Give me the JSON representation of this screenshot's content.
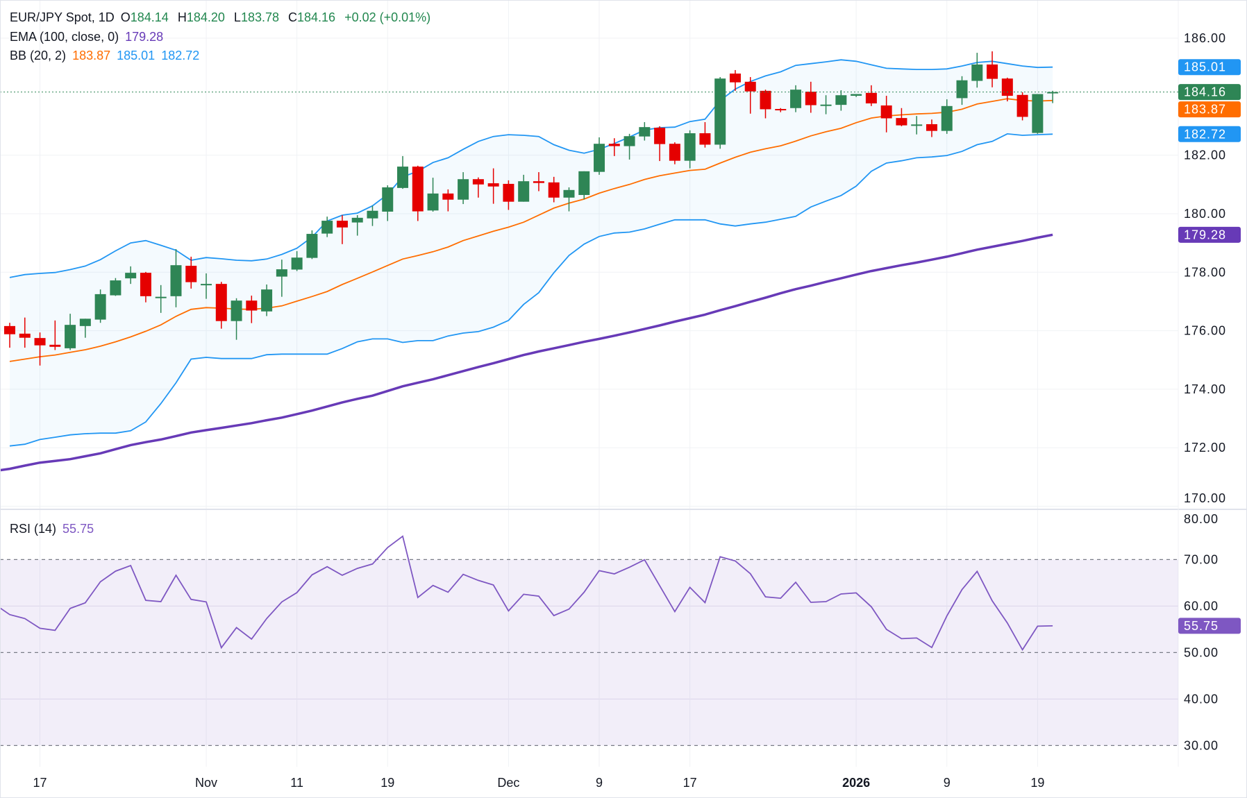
{
  "legend": {
    "symbol": "EUR/JPY Spot, 1D",
    "open_label": "O",
    "open": "184.14",
    "high_label": "H",
    "high": "184.20",
    "low_label": "L",
    "low": "183.78",
    "close_label": "C",
    "close": "184.16",
    "change": "+0.02 (+0.01%)",
    "ema_label": "EMA (100, close, 0)",
    "ema_value": "179.28",
    "bb_label": "BB (20, 2)",
    "bb_basis": "183.87",
    "bb_upper": "185.01",
    "bb_lower": "182.72",
    "rsi_label": "RSI (14)",
    "rsi_value": "55.75"
  },
  "colors": {
    "up": "#2e8555",
    "down": "#e50000",
    "bb_band": "#2196f3",
    "bb_basis": "#ff6d00",
    "ema": "#673ab7",
    "rsi": "#7e57c2",
    "last_price": "#2e8555"
  },
  "chart_data": [
    {
      "type": "candlestick",
      "x": [
        "2025-10-15",
        "2025-10-16",
        "2025-10-17",
        "2025-10-20",
        "2025-10-21",
        "2025-10-22",
        "2025-10-23",
        "2025-10-24",
        "2025-10-27",
        "2025-10-28",
        "2025-10-29",
        "2025-10-30",
        "2025-10-31",
        "2025-11-03",
        "2025-11-04",
        "2025-11-05",
        "2025-11-06",
        "2025-11-07",
        "2025-11-10",
        "2025-11-11",
        "2025-11-12",
        "2025-11-13",
        "2025-11-14",
        "2025-11-17",
        "2025-11-18",
        "2025-11-19",
        "2025-11-20",
        "2025-11-21",
        "2025-11-24",
        "2025-11-25",
        "2025-11-26",
        "2025-11-27",
        "2025-11-28",
        "2025-12-01",
        "2025-12-02",
        "2025-12-03",
        "2025-12-04",
        "2025-12-05",
        "2025-12-08",
        "2025-12-09",
        "2025-12-10",
        "2025-12-11",
        "2025-12-12",
        "2025-12-15",
        "2025-12-16",
        "2025-12-17",
        "2025-12-18",
        "2025-12-19",
        "2025-12-22",
        "2025-12-23",
        "2025-12-24",
        "2025-12-25",
        "2025-12-26",
        "2025-12-29",
        "2025-12-30",
        "2025-12-31",
        "2026-01-01",
        "2026-01-02",
        "2026-01-05",
        "2026-01-06",
        "2026-01-07",
        "2026-01-08",
        "2026-01-09",
        "2026-01-12",
        "2026-01-13",
        "2026-01-14",
        "2026-01-15",
        "2026-01-16",
        "2026-01-19",
        "2026-01-20"
      ],
      "ohlc": [
        [
          176.16,
          176.27,
          175.42,
          175.88
        ],
        [
          175.9,
          176.45,
          175.42,
          175.76
        ],
        [
          175.75,
          175.94,
          174.81,
          175.5
        ],
        [
          175.52,
          176.35,
          175.34,
          175.45
        ],
        [
          175.4,
          176.58,
          175.34,
          176.2
        ],
        [
          176.16,
          176.41,
          175.76,
          176.41
        ],
        [
          176.38,
          177.41,
          176.27,
          177.25
        ],
        [
          177.21,
          177.8,
          177.19,
          177.72
        ],
        [
          177.79,
          178.2,
          177.6,
          177.98
        ],
        [
          177.98,
          178.01,
          176.97,
          177.18
        ],
        [
          177.14,
          177.56,
          176.61,
          177.16
        ],
        [
          177.18,
          178.79,
          176.8,
          178.24
        ],
        [
          178.22,
          178.53,
          177.44,
          177.66
        ],
        [
          177.58,
          177.96,
          177.09,
          177.6
        ],
        [
          177.6,
          177.67,
          176.07,
          176.33
        ],
        [
          176.33,
          177.11,
          175.69,
          177.03
        ],
        [
          177.03,
          177.2,
          176.26,
          176.69
        ],
        [
          176.66,
          177.58,
          176.5,
          177.41
        ],
        [
          177.85,
          178.43,
          177.16,
          178.1
        ],
        [
          178.09,
          178.72,
          178.04,
          178.5
        ],
        [
          178.49,
          179.43,
          178.45,
          179.31
        ],
        [
          179.32,
          179.9,
          179.2,
          179.76
        ],
        [
          179.76,
          179.95,
          178.96,
          179.53
        ],
        [
          179.7,
          179.95,
          179.25,
          179.86
        ],
        [
          179.84,
          180.27,
          179.58,
          180.1
        ],
        [
          180.07,
          180.97,
          179.75,
          180.9
        ],
        [
          180.88,
          181.97,
          180.85,
          181.61
        ],
        [
          181.61,
          181.64,
          179.75,
          180.08
        ],
        [
          180.11,
          181.23,
          180.07,
          180.69
        ],
        [
          180.69,
          180.83,
          180.08,
          180.48
        ],
        [
          180.48,
          181.42,
          180.33,
          181.18
        ],
        [
          181.18,
          181.24,
          180.55,
          181.0
        ],
        [
          181.04,
          181.55,
          180.34,
          180.93
        ],
        [
          181.02,
          181.14,
          180.13,
          180.41
        ],
        [
          180.41,
          181.33,
          180.41,
          181.11
        ],
        [
          181.11,
          181.42,
          180.77,
          181.05
        ],
        [
          181.07,
          181.26,
          180.39,
          180.55
        ],
        [
          180.55,
          180.9,
          180.08,
          180.81
        ],
        [
          180.64,
          181.45,
          180.49,
          181.45
        ],
        [
          181.43,
          182.61,
          181.33,
          182.39
        ],
        [
          182.39,
          182.58,
          181.97,
          182.31
        ],
        [
          182.31,
          182.73,
          181.85,
          182.65
        ],
        [
          182.64,
          183.13,
          182.5,
          182.96
        ],
        [
          182.94,
          182.99,
          181.8,
          182.38
        ],
        [
          182.39,
          182.44,
          181.69,
          181.81
        ],
        [
          181.81,
          182.85,
          181.55,
          182.75
        ],
        [
          182.75,
          183.13,
          182.26,
          182.36
        ],
        [
          182.36,
          184.67,
          182.22,
          184.62
        ],
        [
          184.79,
          184.91,
          184.2,
          184.49
        ],
        [
          184.51,
          184.67,
          183.42,
          184.18
        ],
        [
          184.2,
          184.24,
          183.26,
          183.57
        ],
        [
          183.58,
          183.61,
          183.47,
          183.55
        ],
        [
          183.61,
          184.39,
          183.47,
          184.24
        ],
        [
          184.17,
          184.51,
          183.45,
          183.71
        ],
        [
          183.72,
          184.05,
          183.4,
          183.73
        ],
        [
          183.72,
          184.22,
          183.52,
          184.05
        ],
        [
          184.03,
          184.09,
          183.99,
          184.09
        ],
        [
          184.13,
          184.39,
          183.68,
          183.77
        ],
        [
          183.7,
          184.03,
          182.78,
          183.26
        ],
        [
          183.27,
          183.61,
          182.99,
          183.02
        ],
        [
          183.04,
          183.34,
          182.71,
          183.05
        ],
        [
          183.06,
          183.22,
          182.62,
          182.83
        ],
        [
          182.83,
          183.91,
          182.73,
          183.68
        ],
        [
          183.95,
          184.7,
          183.72,
          184.56
        ],
        [
          184.54,
          185.5,
          184.31,
          185.1
        ],
        [
          185.1,
          185.55,
          184.32,
          184.61
        ],
        [
          184.62,
          184.65,
          183.84,
          184.03
        ],
        [
          184.06,
          184.15,
          183.19,
          183.31
        ],
        [
          182.76,
          184.09,
          182.73,
          184.09
        ],
        [
          184.14,
          184.2,
          183.78,
          184.16
        ]
      ],
      "series": [
        {
          "name": "BB upper",
          "values": [
            177.82,
            177.92,
            177.96,
            177.99,
            178.09,
            178.21,
            178.43,
            178.73,
            179.0,
            179.08,
            178.92,
            178.75,
            178.41,
            178.5,
            178.46,
            178.41,
            178.39,
            178.45,
            178.61,
            178.82,
            179.2,
            179.75,
            179.95,
            180.02,
            180.27,
            180.66,
            181.26,
            181.45,
            181.75,
            181.91,
            182.2,
            182.47,
            182.64,
            182.7,
            182.68,
            182.64,
            182.36,
            182.17,
            182.07,
            182.2,
            182.4,
            182.62,
            182.86,
            182.94,
            182.96,
            183.15,
            183.23,
            183.87,
            184.26,
            184.52,
            184.71,
            184.85,
            185.07,
            185.13,
            185.19,
            185.26,
            185.21,
            185.09,
            184.97,
            184.95,
            184.93,
            184.93,
            184.95,
            185.05,
            185.17,
            185.21,
            185.13,
            185.05,
            185.0,
            185.01
          ]
        },
        {
          "name": "BB basis",
          "values": [
            174.95,
            175.03,
            175.11,
            175.17,
            175.26,
            175.35,
            175.47,
            175.62,
            175.79,
            175.98,
            176.2,
            176.49,
            176.73,
            176.79,
            176.77,
            176.74,
            176.73,
            176.77,
            176.85,
            177.01,
            177.17,
            177.34,
            177.58,
            177.79,
            178.01,
            178.23,
            178.45,
            178.57,
            178.7,
            178.86,
            179.08,
            179.24,
            179.4,
            179.54,
            179.71,
            179.95,
            180.19,
            180.36,
            180.5,
            180.7,
            180.86,
            181.0,
            181.17,
            181.3,
            181.39,
            181.48,
            181.52,
            181.73,
            181.93,
            182.1,
            182.22,
            182.32,
            182.48,
            182.66,
            182.8,
            182.92,
            183.11,
            183.27,
            183.34,
            183.38,
            183.41,
            183.43,
            183.47,
            183.57,
            183.75,
            183.84,
            183.93,
            183.87,
            183.85,
            183.87
          ]
        },
        {
          "name": "BB lower",
          "values": [
            172.06,
            172.12,
            172.28,
            172.36,
            172.44,
            172.48,
            172.5,
            172.5,
            172.58,
            172.88,
            173.51,
            174.22,
            175.03,
            175.09,
            175.05,
            175.05,
            175.05,
            175.18,
            175.2,
            175.2,
            175.2,
            175.2,
            175.39,
            175.62,
            175.72,
            175.72,
            175.6,
            175.66,
            175.66,
            175.82,
            175.92,
            175.97,
            176.12,
            176.35,
            176.9,
            177.3,
            177.98,
            178.57,
            178.96,
            179.22,
            179.34,
            179.37,
            179.48,
            179.64,
            179.79,
            179.79,
            179.79,
            179.65,
            179.58,
            179.65,
            179.71,
            179.81,
            179.91,
            180.23,
            180.43,
            180.62,
            180.94,
            181.45,
            181.73,
            181.81,
            181.91,
            181.94,
            181.99,
            182.13,
            182.36,
            182.47,
            182.73,
            182.68,
            182.7,
            182.72
          ]
        },
        {
          "name": "EMA 100",
          "values": [
            171.28,
            171.39,
            171.49,
            171.55,
            171.61,
            171.71,
            171.81,
            171.95,
            172.09,
            172.19,
            172.28,
            172.4,
            172.52,
            172.6,
            172.68,
            172.76,
            172.84,
            172.94,
            173.03,
            173.15,
            173.27,
            173.41,
            173.55,
            173.67,
            173.78,
            173.94,
            174.1,
            174.22,
            174.34,
            174.48,
            174.62,
            174.76,
            174.89,
            175.03,
            175.17,
            175.29,
            175.4,
            175.51,
            175.62,
            175.72,
            175.83,
            175.94,
            176.06,
            176.18,
            176.31,
            176.43,
            176.55,
            176.7,
            176.84,
            176.99,
            177.13,
            177.28,
            177.42,
            177.54,
            177.67,
            177.79,
            177.92,
            178.04,
            178.14,
            178.24,
            178.33,
            178.43,
            178.53,
            178.65,
            178.77,
            178.87,
            178.97,
            179.07,
            179.18,
            179.28
          ]
        }
      ],
      "ylim": [
        170,
        186
      ],
      "yticks": [
        "186.00",
        "182.00",
        "180.00",
        "178.00",
        "176.00",
        "174.00",
        "172.00",
        "170.00"
      ],
      "last_price": 184.16,
      "price_tags": [
        {
          "text": "185.01",
          "value": 185.01,
          "color": "#2196f3"
        },
        {
          "text": "184.16",
          "value": 184.16,
          "color": "#2e8555"
        },
        {
          "text": "183.87",
          "value": 183.87,
          "color": "#ff6d00"
        },
        {
          "text": "182.72",
          "value": 182.72,
          "color": "#2196f3"
        },
        {
          "text": "179.28",
          "value": 179.28,
          "color": "#673ab7"
        }
      ],
      "grid": true
    },
    {
      "type": "line",
      "name": "RSI (14)",
      "values": [
        58.16,
        57.31,
        55.22,
        54.78,
        59.5,
        60.7,
        65.22,
        67.51,
        68.71,
        61.24,
        60.95,
        66.62,
        61.44,
        60.9,
        51.04,
        55.37,
        52.89,
        57.31,
        60.9,
        62.89,
        66.72,
        68.46,
        66.62,
        68.11,
        69.05,
        72.59,
        75.02,
        61.84,
        64.43,
        62.99,
        66.82,
        65.52,
        64.53,
        58.96,
        62.54,
        62.14,
        57.96,
        59.35,
        62.99,
        67.61,
        66.92,
        68.36,
        69.95,
        64.38,
        58.81,
        64.03,
        60.75,
        70.6,
        69.7,
        66.97,
        61.99,
        61.69,
        65.12,
        60.8,
        60.95,
        62.59,
        62.84,
        59.85,
        54.98,
        52.99,
        53.13,
        51.09,
        57.86,
        63.53,
        67.46,
        61.14,
        56.37,
        50.6,
        55.67,
        55.75
      ],
      "ylim": [
        30,
        80
      ],
      "yticks": [
        "80.00",
        "70.00",
        "60.00",
        "50.00",
        "40.00",
        "30.00"
      ],
      "levels": [
        70,
        50,
        30
      ],
      "tag": {
        "text": "55.75",
        "value": 55.75,
        "color": "#7e57c2"
      }
    }
  ],
  "time_axis": [
    {
      "label": "17",
      "date": "2025-10-17"
    },
    {
      "label": "Nov",
      "date": "2025-11-03"
    },
    {
      "label": "11",
      "date": "2025-11-11"
    },
    {
      "label": "19",
      "date": "2025-11-19"
    },
    {
      "label": "Dec",
      "date": "2025-12-01"
    },
    {
      "label": "9",
      "date": "2025-12-09"
    },
    {
      "label": "17",
      "date": "2025-12-17"
    },
    {
      "label": "2026",
      "date": "2026-01-01",
      "bold": true
    },
    {
      "label": "9",
      "date": "2026-01-09"
    },
    {
      "label": "19",
      "date": "2026-01-19"
    }
  ]
}
